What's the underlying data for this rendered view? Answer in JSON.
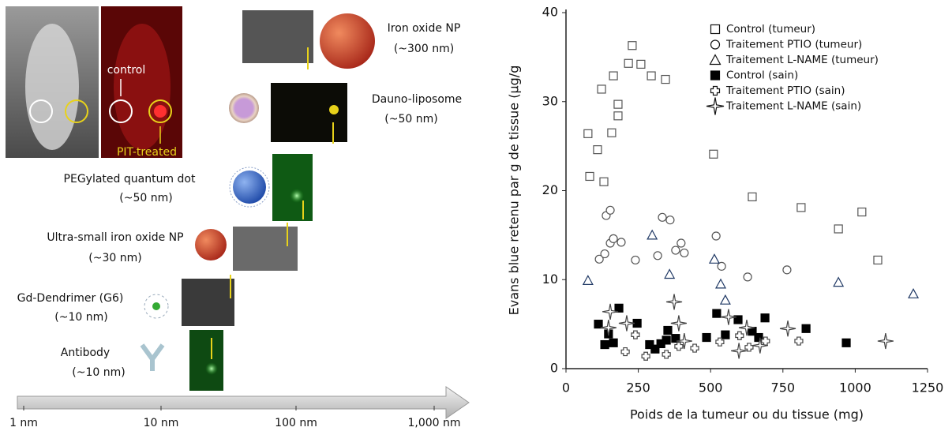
{
  "diagram": {
    "mouse": {
      "control": "control",
      "treated": "PIT-treated"
    },
    "items": [
      {
        "name": "Iron oxide NP",
        "size": "(~300 nm)"
      },
      {
        "name": "Dauno-liposome",
        "size": "(~50 nm)"
      },
      {
        "name": "PEGylated quantum dot",
        "size": "(~50 nm)"
      },
      {
        "name": "Ultra-small iron oxide NP",
        "size": "(~30 nm)"
      },
      {
        "name": "Gd-Dendrimer (G6)",
        "size": "(~10 nm)"
      },
      {
        "name": "Antibody",
        "size": "(~10 nm)"
      }
    ],
    "scale_labels": [
      "1 nm",
      "10 nm",
      "100 nm",
      "1,000 nm"
    ]
  },
  "chart_data": {
    "type": "scatter",
    "xlabel": "Poids de la tumeur ou du tissue (mg)",
    "ylabel": "Evans blue retenu par g de tissue (µg/g",
    "xlim": [
      0,
      1250
    ],
    "xticks": [
      0,
      250,
      500,
      750,
      1000,
      1250
    ],
    "ylim": [
      0,
      40
    ],
    "yticks": [
      0,
      10,
      20,
      30,
      40
    ],
    "legend": "upper right",
    "series": [
      {
        "name": "Control (tumeur)",
        "marker": "square",
        "color": "#555555",
        "x": [
          76,
          82,
          109,
          123,
          131,
          158,
          164,
          180,
          180,
          216,
          229,
          259,
          295,
          344,
          510,
          644,
          813,
          942,
          1023,
          1078
        ],
        "values": [
          26.4,
          21.6,
          24.6,
          31.4,
          21.0,
          26.5,
          32.9,
          28.4,
          29.7,
          34.3,
          36.3,
          34.2,
          32.9,
          32.5,
          24.1,
          19.3,
          18.1,
          15.7,
          17.6,
          12.2
        ]
      },
      {
        "name": "Traitement PTIO (tumeur)",
        "marker": "circle",
        "color": "#555555",
        "x": [
          115,
          134,
          139,
          153,
          153,
          164,
          191,
          240,
          317,
          333,
          360,
          379,
          398,
          409,
          519,
          538,
          628,
          764
        ],
        "values": [
          12.3,
          12.9,
          17.2,
          17.8,
          14.1,
          14.6,
          14.2,
          12.2,
          12.7,
          17.0,
          16.7,
          13.3,
          14.1,
          13.0,
          14.9,
          11.5,
          10.3,
          11.1
        ]
      },
      {
        "name": "Traitement L-NAME (tumeur)",
        "marker": "triangle",
        "color": "#1f3864",
        "x": [
          76,
          298,
          358,
          513,
          535,
          551,
          942,
          1201
        ],
        "values": [
          9.9,
          15.0,
          10.6,
          12.3,
          9.5,
          7.7,
          9.7,
          8.4
        ]
      },
      {
        "name": "Control (sain)",
        "marker": "filled-square",
        "color": "#000000",
        "x": [
          112,
          134,
          147,
          164,
          183,
          246,
          289,
          308,
          328,
          347,
          352,
          379,
          486,
          521,
          551,
          595,
          644,
          666,
          688,
          830,
          969
        ],
        "values": [
          5.0,
          2.7,
          3.9,
          2.9,
          6.8,
          5.1,
          2.7,
          2.2,
          2.8,
          3.2,
          4.3,
          3.4,
          3.5,
          6.2,
          3.8,
          5.5,
          4.2,
          3.5,
          5.7,
          4.5,
          2.9
        ]
      },
      {
        "name": "Traitement PTIO (sain)",
        "marker": "cross",
        "color": "#444444",
        "x": [
          205,
          240,
          276,
          347,
          390,
          445,
          532,
          600,
          633,
          690,
          805
        ],
        "values": [
          1.9,
          3.8,
          1.4,
          1.6,
          2.5,
          2.3,
          3.0,
          3.7,
          2.4,
          3.1,
          3.1
        ]
      },
      {
        "name": "Traitement L-NAME (sain)",
        "marker": "star",
        "color": "#444444",
        "x": [
          153,
          147,
          210,
          374,
          390,
          409,
          562,
          598,
          625,
          671,
          767,
          1105
        ],
        "values": [
          6.4,
          4.6,
          5.1,
          7.5,
          5.1,
          3.1,
          5.8,
          2.0,
          4.6,
          2.6,
          4.5,
          3.1
        ]
      }
    ]
  }
}
